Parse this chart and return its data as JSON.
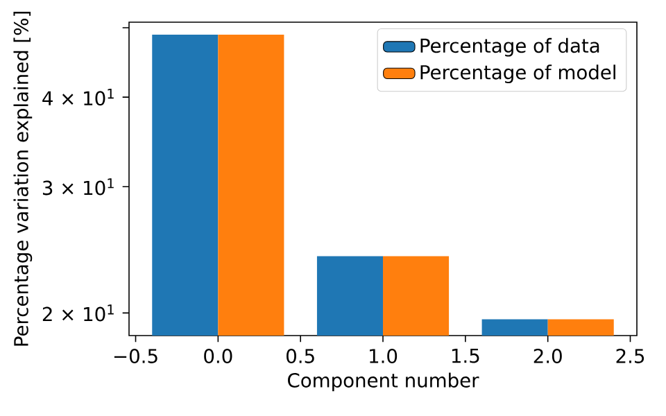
{
  "chart_data": {
    "type": "bar",
    "xlabel": "Component number",
    "ylabel": "Percentage variation explained [%]",
    "x": [
      0,
      1,
      2
    ],
    "series": [
      {
        "name": "Percentage of data",
        "color": "#1f77b4",
        "values": [
          48.9,
          24,
          19.6
        ]
      },
      {
        "name": "Percentage of model",
        "color": "#ff7f0e",
        "values": [
          48.9,
          24,
          19.6
        ]
      }
    ],
    "xlim": [
      -0.54,
      2.54
    ],
    "ylim": [
      18.6,
      50.9
    ],
    "xticks": [
      {
        "value": -0.5,
        "label": "−0.5"
      },
      {
        "value": 0,
        "label": "0.0"
      },
      {
        "value": 0.5,
        "label": "0.5"
      },
      {
        "value": 1,
        "label": "1.0"
      },
      {
        "value": 1.5,
        "label": "1.5"
      },
      {
        "value": 2,
        "label": "2.0"
      },
      {
        "value": 2.5,
        "label": "2.5"
      }
    ],
    "yticks": [
      {
        "value": 20,
        "label": "2 × 10$^{1}$"
      },
      {
        "value": 30,
        "label": "3 × 10$^{1}$"
      },
      {
        "value": 40,
        "label": "4 × 10$^{1}$"
      },
      {
        "value": 50,
        "label": null
      }
    ],
    "log": "y",
    "grid": false,
    "legend": "top right"
  }
}
